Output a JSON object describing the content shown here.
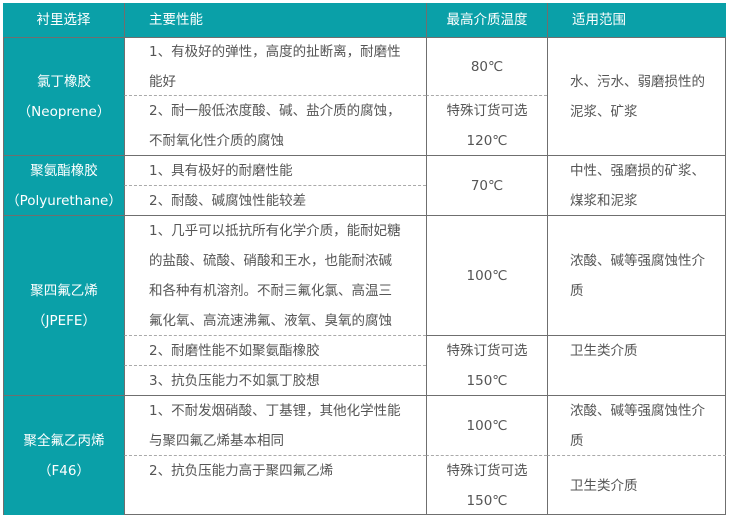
{
  "header": {
    "col1": "衬里选择",
    "col2": "主要性能",
    "col3": "最高介质温度",
    "col4": "适用范围"
  },
  "rows": [
    {
      "lining": [
        "氯丁橡胶",
        "（Neoprene）"
      ],
      "props": [
        [
          "1、有极好的弹性，高度的扯断离，耐磨性",
          "能好"
        ],
        [
          "2、耐一般低浓度酸、碱、盐介质的腐蚀，",
          "不耐氧化性介质的腐蚀"
        ]
      ],
      "temp": [
        [
          "80℃"
        ],
        [
          "特殊订货可选",
          "120℃"
        ]
      ],
      "use": [
        [
          "水、污水、弱磨损性的",
          "泥浆、矿浆"
        ]
      ]
    },
    {
      "lining": [
        "聚氨酯橡胶",
        "（Polyurethane）"
      ],
      "props": [
        [
          "1、具有极好的耐磨性能"
        ],
        [
          "2、耐酸、碱腐蚀性能较差"
        ]
      ],
      "temp": [
        [
          "70℃"
        ]
      ],
      "use": [
        [
          "中性、强磨损的矿浆、",
          "煤浆和泥浆"
        ]
      ]
    },
    {
      "lining": [
        "聚四氟乙烯",
        "（JPEFE）"
      ],
      "props": [
        [
          "1、几乎可以抵抗所有化学介质，能耐妃糖",
          "的盐酸、硫酸、硝酸和王水，也能耐浓碱",
          "和各种有机溶剂。不耐三氟化氯、高温三",
          "氟化氧、高流速沸氟、液氧、臭氧的腐蚀"
        ],
        [
          "2、耐磨性能不如聚氨酯橡胶"
        ],
        [
          "3、抗负压能力不如氯丁胶想"
        ]
      ],
      "temp": [
        [
          "100℃"
        ],
        [
          "特殊订货可选",
          "150℃"
        ]
      ],
      "use": [
        [
          "浓酸、碱等强腐蚀性介",
          "质"
        ],
        [
          "卫生类介质"
        ]
      ]
    },
    {
      "lining": [
        "聚全氟乙丙烯",
        "（F46）"
      ],
      "props": [
        [
          "1、不耐发烟硝酸、丁基锂，其他化学性能",
          "与聚四氟乙烯基本相同"
        ],
        [
          "2、抗负压能力高于聚四氟乙烯"
        ]
      ],
      "temp": [
        [
          "100℃"
        ],
        [
          "特殊订货可选",
          "150℃"
        ]
      ],
      "use": [
        [
          "浓酸、碱等强腐蚀性介",
          "质"
        ],
        [
          "卫生类介质"
        ]
      ]
    }
  ],
  "colors": {
    "header_bg": "#0aa0a8",
    "lining_bg": "#0aa0a8",
    "text": "#555555"
  }
}
